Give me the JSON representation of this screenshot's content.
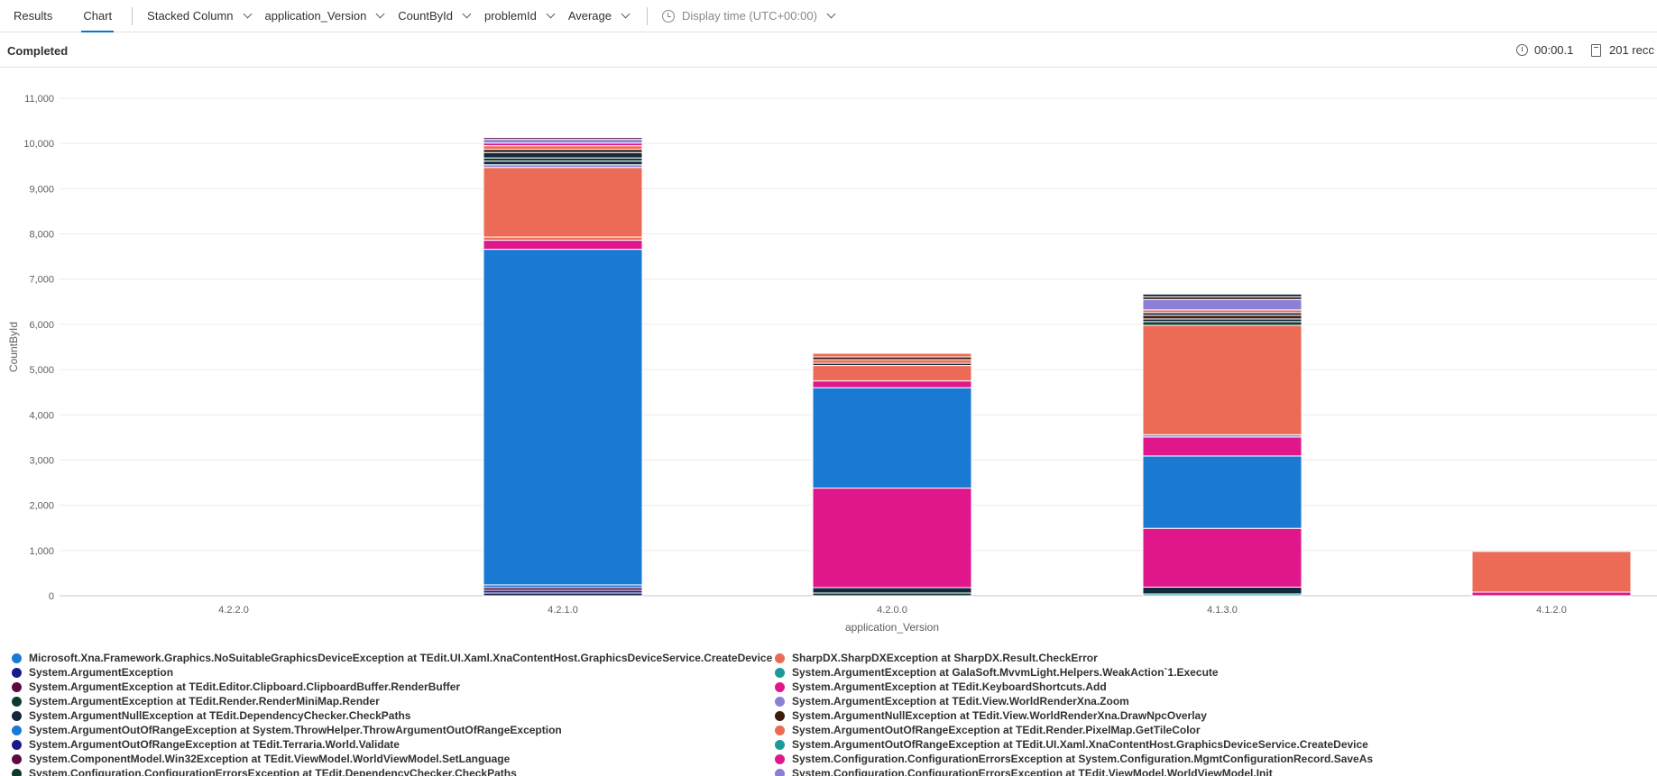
{
  "toolbar": {
    "tabs": [
      {
        "label": "Results",
        "active": false
      },
      {
        "label": "Chart",
        "active": true
      }
    ],
    "dropdowns": [
      {
        "label": "Stacked Column"
      },
      {
        "label": "application_Version"
      },
      {
        "label": "CountById"
      },
      {
        "label": "problemId"
      },
      {
        "label": "Average"
      }
    ],
    "display_time": "Display time (UTC+00:00)"
  },
  "status": {
    "text": "Completed",
    "elapsed": "00:00.1",
    "records": "201 recc"
  },
  "colors": {
    "accent": "#0078d4",
    "blue": "#1a79d2",
    "pink": "#e0168b",
    "salmon": "#ec6b56",
    "dark_navy": "#1a1a8a",
    "dark_green": "#0c3b2e",
    "near_black": "#14283c",
    "plum": "#5c0a3f",
    "teal": "#1c9a9a",
    "lavender": "#8b7fd6",
    "brown": "#3e1a10"
  },
  "chart_data": {
    "type": "bar",
    "stacked": true,
    "xlabel": "application_Version",
    "ylabel": "CountById",
    "ylim": [
      0,
      11000
    ],
    "yticks": [
      "0",
      "1,000",
      "2,000",
      "3,000",
      "4,000",
      "5,000",
      "6,000",
      "7,000",
      "8,000",
      "9,000",
      "10,000",
      "11,000"
    ],
    "grid": true,
    "legend_position": "bottom",
    "categories": [
      "4.2.2.0",
      "4.2.1.0",
      "4.2.0.0",
      "4.1.3.0",
      "4.1.2.0"
    ],
    "stacks": [
      {
        "category": "4.2.2.0",
        "segments": []
      },
      {
        "category": "4.2.1.0",
        "segments": [
          {
            "color": "#14283c",
            "value": 60
          },
          {
            "color": "#1a1a8a",
            "value": 60
          },
          {
            "color": "#5c0a3f",
            "value": 60
          },
          {
            "color": "#1a79d2",
            "value": 60
          },
          {
            "color": "#1a79d2",
            "value": 7420
          },
          {
            "color": "#e0168b",
            "value": 200
          },
          {
            "color": "#ec6b56",
            "value": 70
          },
          {
            "color": "#ec6b56",
            "value": 1540
          },
          {
            "color": "#8b7fd6",
            "value": 60
          },
          {
            "color": "#14283c",
            "value": 80
          },
          {
            "color": "#0c3b2e",
            "value": 70
          },
          {
            "color": "#14283c",
            "value": 120
          },
          {
            "color": "#3e1a10",
            "value": 70
          },
          {
            "color": "#ec6b56",
            "value": 80
          },
          {
            "color": "#e0168b",
            "value": 60
          },
          {
            "color": "#8b7fd6",
            "value": 80
          },
          {
            "color": "#5c0a3f",
            "value": 40
          }
        ]
      },
      {
        "category": "4.2.0.0",
        "segments": [
          {
            "color": "#0c3b2e",
            "value": 60
          },
          {
            "color": "#14283c",
            "value": 120
          },
          {
            "color": "#e0168b",
            "value": 2200
          },
          {
            "color": "#1a79d2",
            "value": 2220
          },
          {
            "color": "#e0168b",
            "value": 150
          },
          {
            "color": "#ec6b56",
            "value": 340
          },
          {
            "color": "#14283c",
            "value": 50
          },
          {
            "color": "#ec6b56",
            "value": 80
          },
          {
            "color": "#3e1a10",
            "value": 60
          },
          {
            "color": "#ec6b56",
            "value": 80
          }
        ]
      },
      {
        "category": "4.1.3.0",
        "segments": [
          {
            "color": "#1c9a9a",
            "value": 40
          },
          {
            "color": "#14283c",
            "value": 150
          },
          {
            "color": "#e0168b",
            "value": 1300
          },
          {
            "color": "#1a79d2",
            "value": 1600
          },
          {
            "color": "#e0168b",
            "value": 420
          },
          {
            "color": "#8b7fd6",
            "value": 50
          },
          {
            "color": "#ec6b56",
            "value": 2420
          },
          {
            "color": "#0c3b2e",
            "value": 80
          },
          {
            "color": "#14283c",
            "value": 60
          },
          {
            "color": "#3e1a10",
            "value": 80
          },
          {
            "color": "#14283c",
            "value": 60
          },
          {
            "color": "#ec6b56",
            "value": 60
          },
          {
            "color": "#8b7fd6",
            "value": 230
          },
          {
            "color": "#3e1a10",
            "value": 60
          },
          {
            "color": "#14283c",
            "value": 60
          }
        ]
      },
      {
        "category": "4.1.2.0",
        "segments": [
          {
            "color": "#e0168b",
            "value": 80
          },
          {
            "color": "#ec6b56",
            "value": 900
          }
        ]
      }
    ],
    "legend": [
      {
        "label": "Microsoft.Xna.Framework.Graphics.NoSuitableGraphicsDeviceException at TEdit.UI.Xaml.XnaContentHost.GraphicsDeviceService.CreateDevice",
        "color": "#1a79d2"
      },
      {
        "label": "SharpDX.SharpDXException at SharpDX.Result.CheckError",
        "color": "#ec6b56"
      },
      {
        "label": "System.ArgumentException",
        "color": "#1a1a8a"
      },
      {
        "label": "System.ArgumentException at GalaSoft.MvvmLight.Helpers.WeakAction`1.Execute",
        "color": "#1c9a9a"
      },
      {
        "label": "System.ArgumentException at TEdit.Editor.Clipboard.ClipboardBuffer.RenderBuffer",
        "color": "#5c0a3f"
      },
      {
        "label": "System.ArgumentException at TEdit.KeyboardShortcuts.Add",
        "color": "#e0168b"
      },
      {
        "label": "System.ArgumentException at TEdit.Render.RenderMiniMap.Render",
        "color": "#0c3b2e"
      },
      {
        "label": "System.ArgumentException at TEdit.View.WorldRenderXna.Zoom",
        "color": "#8b7fd6"
      },
      {
        "label": "System.ArgumentNullException at TEdit.DependencyChecker.CheckPaths",
        "color": "#14283c"
      },
      {
        "label": "System.ArgumentNullException at TEdit.View.WorldRenderXna.DrawNpcOverlay",
        "color": "#3e1a10"
      },
      {
        "label": "System.ArgumentOutOfRangeException at System.ThrowHelper.ThrowArgumentOutOfRangeException",
        "color": "#1a79d2"
      },
      {
        "label": "System.ArgumentOutOfRangeException at TEdit.Render.PixelMap.GetTileColor",
        "color": "#ec6b56"
      },
      {
        "label": "System.ArgumentOutOfRangeException at TEdit.Terraria.World.Validate",
        "color": "#1a1a8a"
      },
      {
        "label": "System.ArgumentOutOfRangeException at TEdit.UI.Xaml.XnaContentHost.GraphicsDeviceService.CreateDevice",
        "color": "#1c9a9a"
      },
      {
        "label": "System.ComponentModel.Win32Exception at TEdit.ViewModel.WorldViewModel.SetLanguage",
        "color": "#5c0a3f"
      },
      {
        "label": "System.Configuration.ConfigurationErrorsException at System.Configuration.MgmtConfigurationRecord.SaveAs",
        "color": "#e0168b"
      },
      {
        "label": "System.Configuration.ConfigurationErrorsException at TEdit.DependencyChecker.CheckPaths",
        "color": "#0c3b2e"
      },
      {
        "label": "System.Configuration.ConfigurationErrorsException at TEdit.ViewModel.WorldViewModel.Init",
        "color": "#8b7fd6"
      }
    ]
  }
}
